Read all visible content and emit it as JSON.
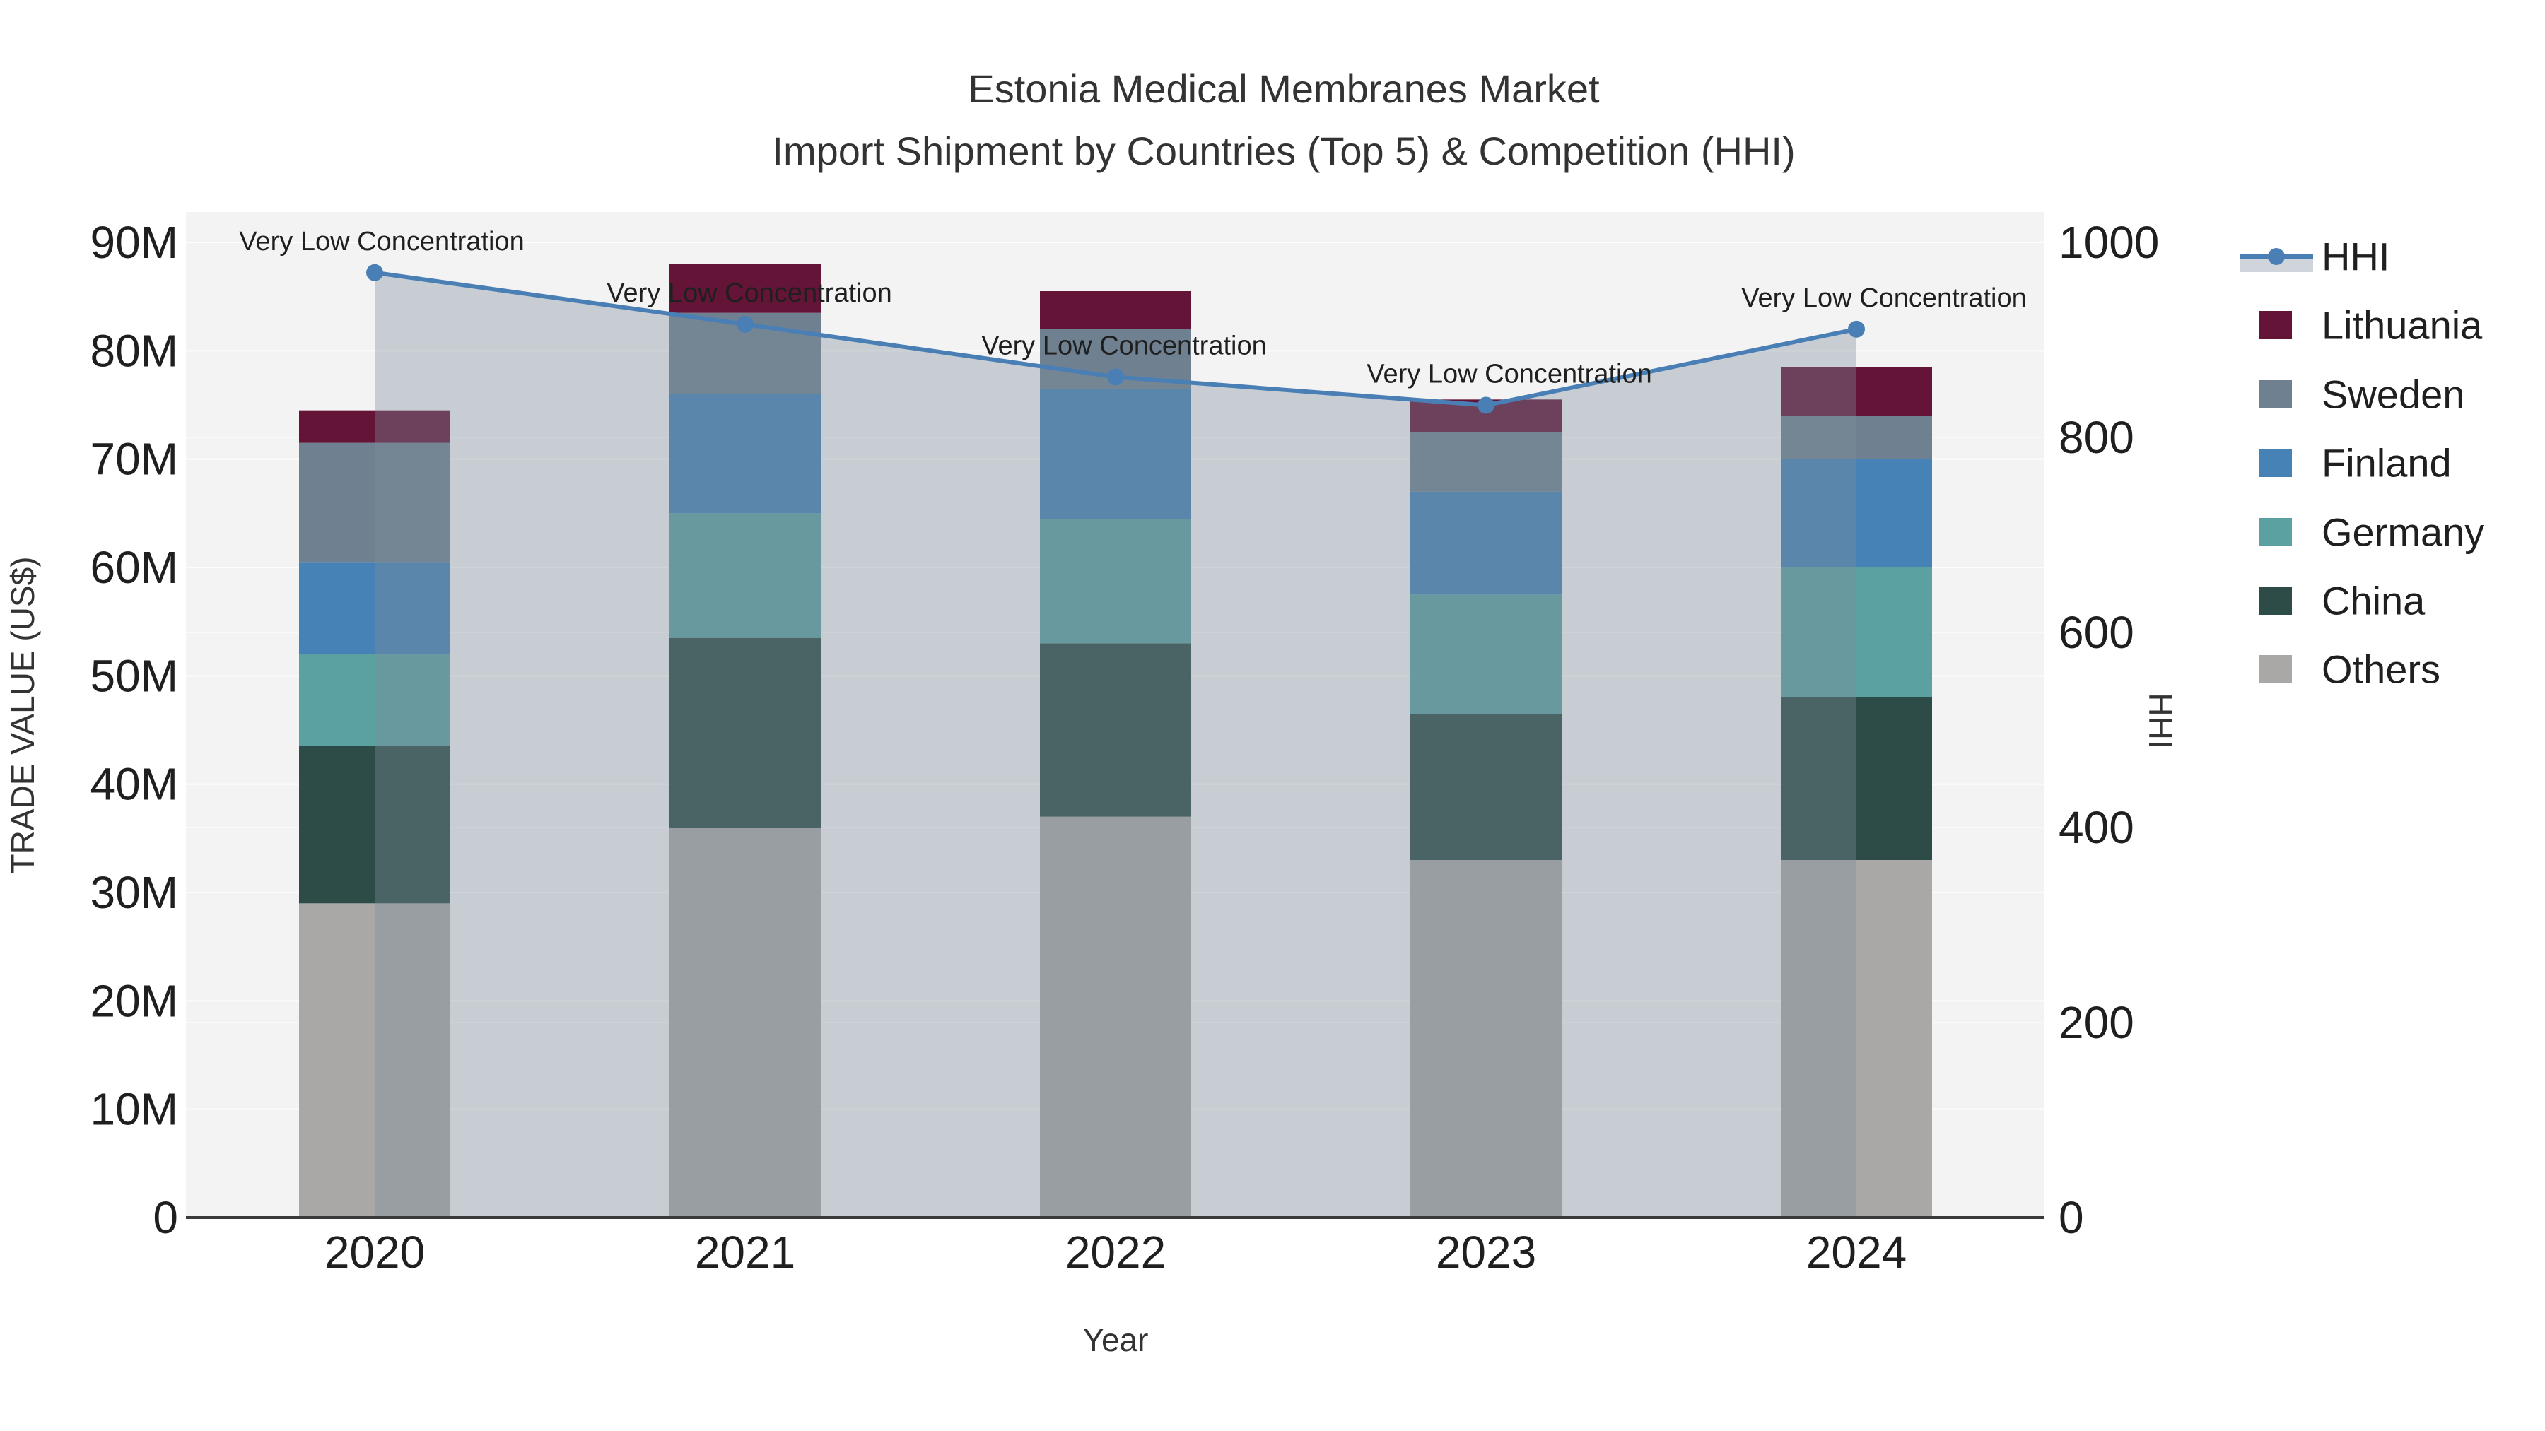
{
  "title": {
    "line1": "Estonia Medical Membranes Market",
    "line2": "Import Shipment by Countries (Top 5) & Competition (HHI)"
  },
  "colors": {
    "plot_background": "#f3f3f3",
    "page_background": "#ffffff",
    "gridline": "#ffffff",
    "axis_line": "#3a3a3a",
    "text_dark": "#1f1f1f",
    "text_title": "#333333",
    "hhi_line": "#4a7fb5",
    "hhi_area_fill": "rgba(124,140,155,0.37)",
    "lithuania": "#641437",
    "sweden": "#6f8090",
    "finland": "#4782b6",
    "germany": "#5ba1a2",
    "china": "#2d4c48",
    "others": "#a9a8a6"
  },
  "legend": {
    "items": [
      {
        "label": "HHI",
        "type": "line",
        "color": "#4a7fb5"
      },
      {
        "label": "Lithuania",
        "type": "box",
        "color": "#641437"
      },
      {
        "label": "Sweden",
        "type": "box",
        "color": "#6f8090"
      },
      {
        "label": "Finland",
        "type": "box",
        "color": "#4782b6"
      },
      {
        "label": "Germany",
        "type": "box",
        "color": "#5ba1a2"
      },
      {
        "label": "China",
        "type": "box",
        "color": "#2d4c48"
      },
      {
        "label": "Others",
        "type": "box",
        "color": "#a9a8a6"
      }
    ]
  },
  "chart_data": {
    "type": "bar+line",
    "categories": [
      "2020",
      "2021",
      "2022",
      "2023",
      "2024"
    ],
    "stack_order_bottom_to_top": [
      "Others",
      "China",
      "Germany",
      "Finland",
      "Sweden",
      "Lithuania"
    ],
    "series": [
      {
        "name": "Others",
        "axis": "left",
        "unit": "M US$",
        "values": [
          29,
          36,
          37,
          33,
          33
        ]
      },
      {
        "name": "China",
        "axis": "left",
        "unit": "M US$",
        "values": [
          14.5,
          17.5,
          16,
          13.5,
          15
        ]
      },
      {
        "name": "Germany",
        "axis": "left",
        "unit": "M US$",
        "values": [
          8.5,
          11.5,
          11.5,
          11,
          12
        ]
      },
      {
        "name": "Finland",
        "axis": "left",
        "unit": "M US$",
        "values": [
          8.5,
          11,
          12,
          9.5,
          10
        ]
      },
      {
        "name": "Sweden",
        "axis": "left",
        "unit": "M US$",
        "values": [
          11,
          7.5,
          5.5,
          5.5,
          4
        ]
      },
      {
        "name": "Lithuania",
        "axis": "left",
        "unit": "M US$",
        "values": [
          3,
          4.5,
          3.5,
          3,
          4.5
        ]
      }
    ],
    "bar_totals_m": [
      74.5,
      88,
      85.5,
      75.5,
      78.5
    ],
    "line_series": {
      "name": "HHI",
      "axis": "right",
      "values": [
        969,
        916,
        862,
        833,
        911
      ],
      "area_fill_under_line": true
    },
    "annotations": [
      {
        "x": "2020",
        "text": "Very Low Concentration"
      },
      {
        "x": "2021",
        "text": "Very Low Concentration"
      },
      {
        "x": "2022",
        "text": "Very Low Concentration"
      },
      {
        "x": "2023",
        "text": "Very Low Concentration"
      },
      {
        "x": "2024",
        "text": "Very Low Concentration"
      }
    ],
    "left_axis": {
      "label": "TRADE VALUE (US$)",
      "range": [
        0,
        90
      ],
      "ticks": [
        {
          "value": 0,
          "label": "0"
        },
        {
          "value": 10,
          "label": "10M"
        },
        {
          "value": 20,
          "label": "20M"
        },
        {
          "value": 30,
          "label": "30M"
        },
        {
          "value": 40,
          "label": "40M"
        },
        {
          "value": 50,
          "label": "50M"
        },
        {
          "value": 60,
          "label": "60M"
        },
        {
          "value": 70,
          "label": "70M"
        },
        {
          "value": 80,
          "label": "80M"
        },
        {
          "value": 90,
          "label": "90M"
        }
      ]
    },
    "right_axis": {
      "label": "HHI",
      "range": [
        0,
        1000
      ],
      "ticks": [
        {
          "value": 0,
          "label": "0"
        },
        {
          "value": 200,
          "label": "200"
        },
        {
          "value": 400,
          "label": "400"
        },
        {
          "value": 600,
          "label": "600"
        },
        {
          "value": 800,
          "label": "800"
        },
        {
          "value": 1000,
          "label": "1000"
        }
      ]
    },
    "x_axis": {
      "label": "Year"
    },
    "legend_position": "right",
    "grid": true
  }
}
